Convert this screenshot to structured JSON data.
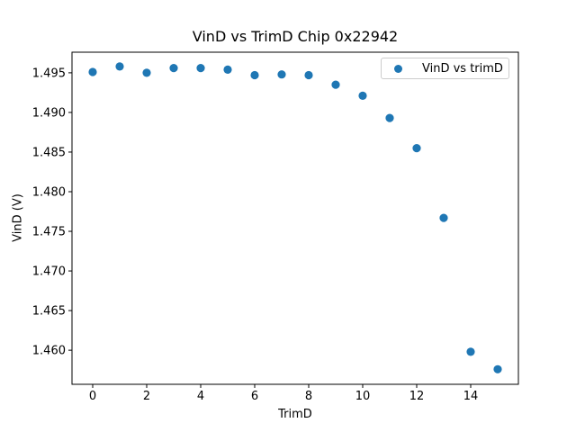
{
  "chart_data": {
    "type": "scatter",
    "title": "VinD vs TrimD Chip 0x22942",
    "xlabel": "TrimD",
    "ylabel": "VinD (V)",
    "legend": {
      "label": "VinD vs trimD",
      "position": "upper right"
    },
    "x": [
      0,
      1,
      2,
      3,
      4,
      5,
      6,
      7,
      8,
      9,
      10,
      11,
      12,
      13,
      14,
      15
    ],
    "y": [
      1.4951,
      1.4958,
      1.495,
      1.4956,
      1.4956,
      1.4954,
      1.4947,
      1.4948,
      1.4947,
      1.4935,
      1.4921,
      1.4893,
      1.4855,
      1.4767,
      1.4598,
      1.4576
    ],
    "xlim": [
      -0.767,
      15.767
    ],
    "ylim": [
      1.4557,
      1.4976
    ],
    "xticks": [
      0,
      2,
      4,
      6,
      8,
      10,
      12,
      14
    ],
    "ytick_labels": [
      "1.495",
      "1.490",
      "1.485",
      "1.480",
      "1.475",
      "1.470",
      "1.465",
      "1.460"
    ],
    "marker_color": "#1f77b4",
    "axis_color": "#000000",
    "grid": false
  }
}
